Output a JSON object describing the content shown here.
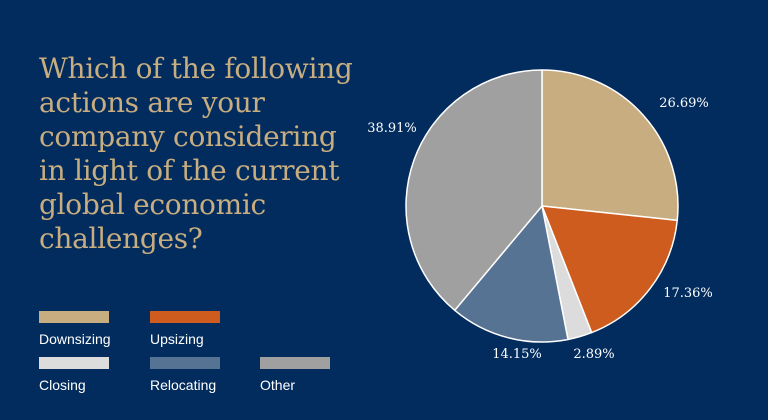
{
  "chart_data": {
    "type": "pie",
    "title": "Which of the following actions are your company considering in light of the current global economic challenges?",
    "categories": [
      "Downsizing",
      "Upsizing",
      "Closing",
      "Relocating",
      "Other"
    ],
    "values": [
      26.69,
      17.36,
      2.89,
      14.15,
      38.91
    ],
    "labels": [
      "26.69%",
      "17.36%",
      "2.89%",
      "14.15%",
      "38.91%"
    ],
    "colors": [
      "#c7ad7f",
      "#cd5c1e",
      "#dcdcdc",
      "#577393",
      "#a0a0a0"
    ],
    "slice_order": [
      0,
      1,
      2,
      3,
      4
    ],
    "start": "top, clockwise",
    "legend_position": "bottom-left"
  }
}
